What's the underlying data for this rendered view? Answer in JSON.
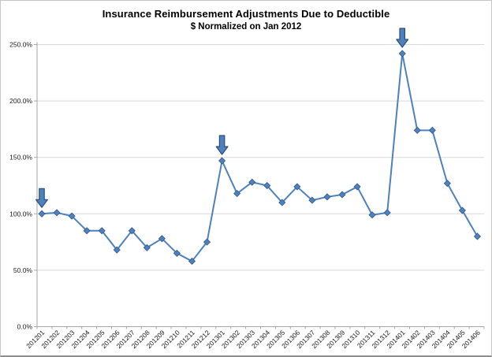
{
  "chart_data": {
    "type": "line",
    "title": "Insurance Reimbursement Adjustments Due to Deductible",
    "subtitle": "$ Normalized on Jan 2012",
    "categories": [
      "201201",
      "201202",
      "201203",
      "201204",
      "201205",
      "201206",
      "201207",
      "201208",
      "201209",
      "201210",
      "201211",
      "201212",
      "201301",
      "201302",
      "201303",
      "201304",
      "201305",
      "201306",
      "201307",
      "201308",
      "201309",
      "201310",
      "201311",
      "201312",
      "201401",
      "201402",
      "201403",
      "201404",
      "201405",
      "201406"
    ],
    "values": [
      100,
      101,
      98,
      85,
      85,
      68,
      85,
      70,
      78,
      65,
      58,
      75,
      147,
      118,
      128,
      125,
      110,
      124,
      112,
      115,
      117,
      124,
      99,
      101,
      242,
      174,
      174,
      127,
      103,
      80
    ],
    "unit": "%",
    "ylim": [
      0,
      250
    ],
    "ytick_step": 50,
    "ytick_labels": [
      "0.0%",
      "50.0%",
      "100.0%",
      "150.0%",
      "200.0%",
      "250.0%"
    ],
    "grid": true,
    "legend": false,
    "marker": "diamond",
    "annotations": [
      {
        "type": "down-arrow",
        "category": "201201"
      },
      {
        "type": "down-arrow",
        "category": "201301"
      },
      {
        "type": "down-arrow",
        "category": "201401"
      }
    ],
    "colors": {
      "line": "#4F81BD",
      "marker": "#4F81BD",
      "marker_edge": "#31578C",
      "arrow_fill": "#4F81BD",
      "arrow_edge": "#2A4D7B",
      "gridline": "#D9D9D9",
      "axis": "#A6A6A6",
      "tick_text": "#1A1A1A"
    }
  }
}
